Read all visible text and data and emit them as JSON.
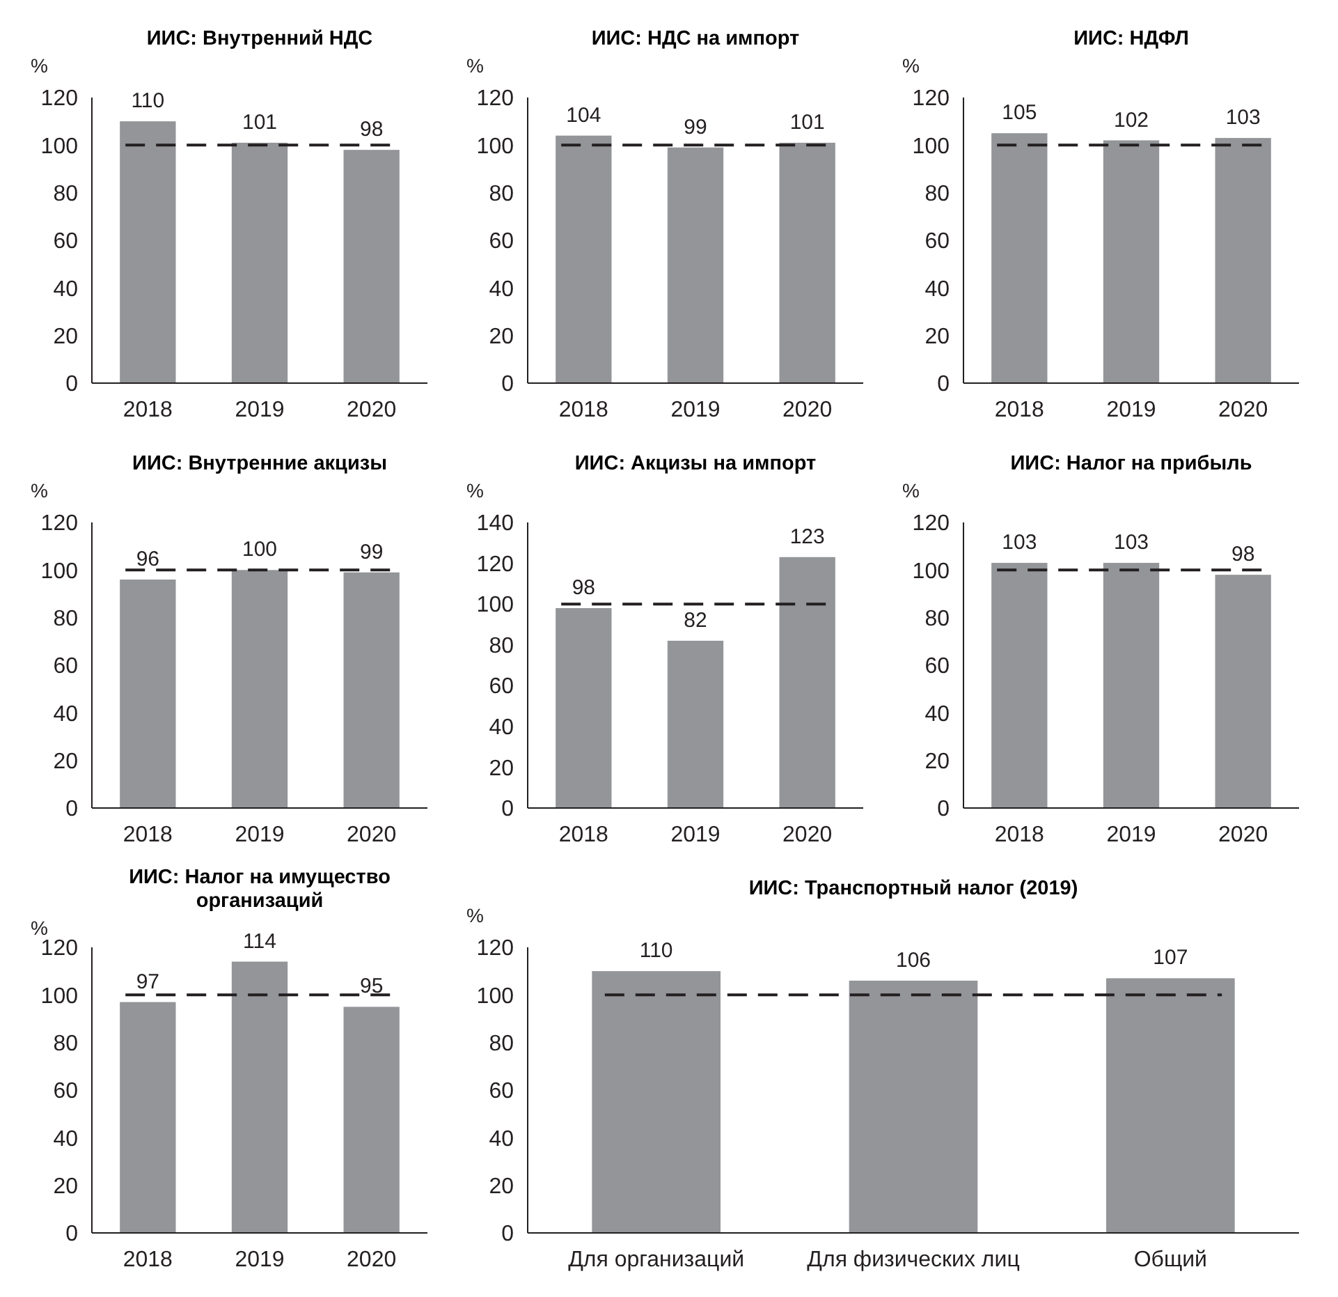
{
  "chart_data": [
    {
      "type": "bar",
      "title": "ИИС: Внутренний НДС",
      "ylabel": "%",
      "categories": [
        "2018",
        "2019",
        "2020"
      ],
      "values": [
        110,
        101,
        98
      ],
      "color": "#939598",
      "ylim": [
        0,
        120
      ],
      "yticks": [
        0,
        20,
        40,
        60,
        80,
        100,
        120
      ],
      "data_labels": true,
      "ref_lines": [
        {
          "axis": "y",
          "value": 100,
          "color": "#231f20",
          "line_style": "dashed"
        }
      ]
    },
    {
      "type": "bar",
      "title": "ИИС: НДС на импорт",
      "ylabel": "%",
      "categories": [
        "2018",
        "2019",
        "2020"
      ],
      "values": [
        104,
        99,
        101
      ],
      "color": "#939598",
      "ylim": [
        0,
        120
      ],
      "yticks": [
        0,
        20,
        40,
        60,
        80,
        100,
        120
      ],
      "data_labels": true,
      "ref_lines": [
        {
          "axis": "y",
          "value": 100,
          "color": "#231f20",
          "line_style": "dashed"
        }
      ]
    },
    {
      "type": "bar",
      "title": "ИИС: НДФЛ",
      "ylabel": "%",
      "categories": [
        "2018",
        "2019",
        "2020"
      ],
      "values": [
        105,
        102,
        103
      ],
      "color": "#939598",
      "ylim": [
        0,
        120
      ],
      "yticks": [
        0,
        20,
        40,
        60,
        80,
        100,
        120
      ],
      "data_labels": true,
      "ref_lines": [
        {
          "axis": "y",
          "value": 100,
          "color": "#231f20",
          "line_style": "dashed"
        }
      ]
    },
    {
      "type": "bar",
      "title": "ИИС: Внутренние акцизы",
      "ylabel": "%",
      "categories": [
        "2018",
        "2019",
        "2020"
      ],
      "values": [
        96,
        100,
        99
      ],
      "color": "#939598",
      "ylim": [
        0,
        120
      ],
      "yticks": [
        0,
        20,
        40,
        60,
        80,
        100,
        120
      ],
      "data_labels": true,
      "ref_lines": [
        {
          "axis": "y",
          "value": 100,
          "color": "#231f20",
          "line_style": "dashed"
        }
      ]
    },
    {
      "type": "bar",
      "title": "ИИС: Акцизы на импорт",
      "ylabel": "%",
      "categories": [
        "2018",
        "2019",
        "2020"
      ],
      "values": [
        98,
        82,
        123
      ],
      "color": "#939598",
      "ylim": [
        0,
        140
      ],
      "yticks": [
        0,
        20,
        40,
        60,
        80,
        100,
        120,
        140
      ],
      "data_labels": true,
      "ref_lines": [
        {
          "axis": "y",
          "value": 100,
          "color": "#231f20",
          "line_style": "dashed"
        }
      ]
    },
    {
      "type": "bar",
      "title": "ИИС: Налог на прибыль",
      "ylabel": "%",
      "categories": [
        "2018",
        "2019",
        "2020"
      ],
      "values": [
        103,
        103,
        98
      ],
      "color": "#939598",
      "ylim": [
        0,
        120
      ],
      "yticks": [
        0,
        20,
        40,
        60,
        80,
        100,
        120
      ],
      "data_labels": true,
      "ref_lines": [
        {
          "axis": "y",
          "value": 100,
          "color": "#231f20",
          "line_style": "dashed"
        }
      ]
    },
    {
      "type": "bar",
      "title": "ИИС: Налог на имущество организаций",
      "ylabel": "%",
      "categories": [
        "2018",
        "2019",
        "2020"
      ],
      "values": [
        97,
        114,
        95
      ],
      "color": "#939598",
      "ylim": [
        0,
        120
      ],
      "yticks": [
        0,
        20,
        40,
        60,
        80,
        100,
        120
      ],
      "data_labels": true,
      "ref_lines": [
        {
          "axis": "y",
          "value": 100,
          "color": "#231f20",
          "line_style": "dashed"
        }
      ]
    },
    {
      "type": "bar",
      "title": "ИИС: Транспортный налог (2019)",
      "ylabel": "%",
      "categories": [
        "Для организаций",
        "Для физических лиц",
        "Общий"
      ],
      "values": [
        110,
        106,
        107
      ],
      "color": "#939598",
      "ylim": [
        0,
        120
      ],
      "yticks": [
        0,
        20,
        40,
        60,
        80,
        100,
        120
      ],
      "data_labels": true,
      "ref_lines": [
        {
          "axis": "y",
          "value": 100,
          "color": "#231f20",
          "line_style": "dashed"
        }
      ]
    }
  ]
}
